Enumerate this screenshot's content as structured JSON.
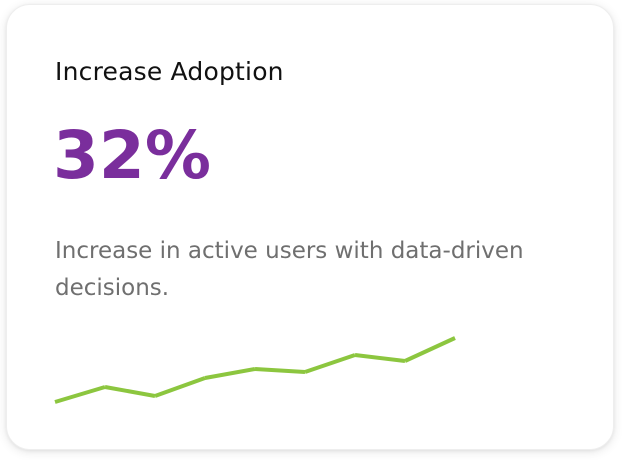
{
  "card": {
    "title": "Increase Adoption",
    "metric": "32%",
    "description": "Increase in active users with data-driven decisions."
  },
  "colors": {
    "metric": "#7a2e9c",
    "sparkline": "#8cc63f",
    "title": "#111111",
    "description": "#6f6f6f"
  },
  "chart_data": {
    "type": "line",
    "title": "",
    "xlabel": "",
    "ylabel": "",
    "grid": false,
    "x": [
      1,
      2,
      3,
      4,
      5,
      6,
      7,
      8,
      9
    ],
    "series": [
      {
        "values": [
          0,
          15,
          6,
          24,
          33,
          30,
          47,
          41,
          64
        ]
      }
    ],
    "ylim": [
      0,
      64
    ]
  }
}
